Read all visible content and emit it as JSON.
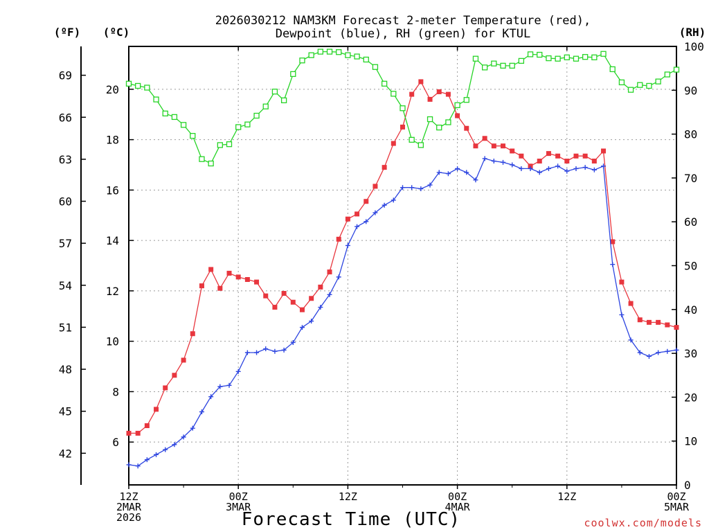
{
  "chart_data": {
    "type": "line",
    "title_lines": [
      "2026030212 NAM3KM Forecast 2-meter Temperature (red),",
      "Dewpoint (blue), RH (green) for KTUL"
    ],
    "xlabel": "Forecast Time (UTC)",
    "credit": "coolwx.com/models",
    "x_unit": "forecast hour",
    "xlim": [
      0,
      60
    ],
    "x_ticks": [
      {
        "x": 0,
        "lines": [
          "12Z",
          "2MAR",
          "2026"
        ]
      },
      {
        "x": 12,
        "lines": [
          "00Z",
          "3MAR"
        ]
      },
      {
        "x": 24,
        "lines": [
          "12Z"
        ]
      },
      {
        "x": 36,
        "lines": [
          "00Z",
          "4MAR"
        ]
      },
      {
        "x": 48,
        "lines": [
          "12Z"
        ]
      },
      {
        "x": 60,
        "lines": [
          "00Z",
          "5MAR"
        ]
      }
    ],
    "y_left_c": {
      "label": "(ºC)",
      "lim": [
        4.3,
        21.7
      ],
      "ticks": [
        "6",
        "8",
        "10",
        "12",
        "14",
        "16",
        "18",
        "20"
      ]
    },
    "y_left_f": {
      "label": "(ºF)",
      "ticks": [
        "42",
        "45",
        "48",
        "51",
        "54",
        "57",
        "60",
        "63",
        "66",
        "69"
      ]
    },
    "y_right_rh": {
      "label": "(RH)",
      "lim": [
        0,
        100
      ],
      "ticks": [
        "0",
        "10",
        "20",
        "30",
        "40",
        "50",
        "60",
        "70",
        "80",
        "90",
        "100"
      ]
    },
    "grid": true,
    "series": [
      {
        "name": "2-meter Temperature",
        "axis": "celsius",
        "color": "#e8363e",
        "marker": "filled-square",
        "x": [
          0,
          1,
          2,
          3,
          4,
          5,
          6,
          7,
          8,
          9,
          10,
          11,
          12,
          13,
          14,
          15,
          16,
          17,
          18,
          19,
          20,
          21,
          22,
          23,
          24,
          25,
          26,
          27,
          28,
          29,
          30,
          31,
          32,
          33,
          34,
          35,
          36,
          37,
          38,
          39,
          40,
          41,
          42,
          43,
          44,
          45,
          46,
          47,
          48,
          49,
          50,
          51,
          52,
          53,
          54,
          55,
          56,
          57,
          58,
          59,
          60
        ],
        "values": [
          6.35,
          6.35,
          6.65,
          7.3,
          8.15,
          8.65,
          9.25,
          10.3,
          12.2,
          12.85,
          12.1,
          12.7,
          12.55,
          12.45,
          12.35,
          11.8,
          11.35,
          11.9,
          11.55,
          11.25,
          11.7,
          12.15,
          12.75,
          14.05,
          14.85,
          15.05,
          15.55,
          16.15,
          16.9,
          17.85,
          18.5,
          19.8,
          20.3,
          19.6,
          19.9,
          19.8,
          18.95,
          18.45,
          17.75,
          18.05,
          17.75,
          17.75,
          17.55,
          17.35,
          16.95,
          17.15,
          17.45,
          17.35,
          17.15,
          17.35,
          17.35,
          17.15,
          17.55,
          13.95,
          12.35,
          11.5,
          10.85,
          10.75,
          10.75,
          10.65,
          10.55
        ]
      },
      {
        "name": "Dewpoint",
        "axis": "celsius",
        "color": "#2c44e0",
        "marker": "plus",
        "x": [
          0,
          1,
          2,
          3,
          4,
          5,
          6,
          7,
          8,
          9,
          10,
          11,
          12,
          13,
          14,
          15,
          16,
          17,
          18,
          19,
          20,
          21,
          22,
          23,
          24,
          25,
          26,
          27,
          28,
          29,
          30,
          31,
          32,
          33,
          34,
          35,
          36,
          37,
          38,
          39,
          40,
          41,
          42,
          43,
          44,
          45,
          46,
          47,
          48,
          49,
          50,
          51,
          52,
          53,
          54,
          55,
          56,
          57,
          58,
          59,
          60
        ],
        "values": [
          5.1,
          5.05,
          5.3,
          5.5,
          5.7,
          5.9,
          6.2,
          6.55,
          7.2,
          7.8,
          8.2,
          8.25,
          8.8,
          9.55,
          9.55,
          9.7,
          9.6,
          9.65,
          9.95,
          10.55,
          10.8,
          11.35,
          11.85,
          12.55,
          13.8,
          14.55,
          14.75,
          15.1,
          15.4,
          15.6,
          16.1,
          16.1,
          16.05,
          16.2,
          16.7,
          16.65,
          16.85,
          16.7,
          16.4,
          17.25,
          17.15,
          17.1,
          17.0,
          16.85,
          16.85,
          16.7,
          16.85,
          16.95,
          16.75,
          16.85,
          16.9,
          16.8,
          16.95,
          13.05,
          11.05,
          10.05,
          9.55,
          9.4,
          9.55,
          9.6,
          9.65
        ]
      },
      {
        "name": "RH",
        "axis": "rh",
        "color": "#26d426",
        "marker": "open-square",
        "x": [
          0,
          1,
          2,
          3,
          4,
          5,
          6,
          7,
          8,
          9,
          10,
          11,
          12,
          13,
          14,
          15,
          16,
          17,
          18,
          19,
          20,
          21,
          22,
          23,
          24,
          25,
          26,
          27,
          28,
          29,
          30,
          31,
          32,
          33,
          34,
          35,
          36,
          37,
          38,
          39,
          40,
          41,
          42,
          43,
          44,
          45,
          46,
          47,
          48,
          49,
          50,
          51,
          52,
          53,
          54,
          55,
          56,
          57,
          58,
          59,
          60
        ],
        "values": [
          91.5,
          91.0,
          90.6,
          87.9,
          84.7,
          83.9,
          82.1,
          79.6,
          74.3,
          73.3,
          77.5,
          77.7,
          81.6,
          82.2,
          84.2,
          86.3,
          89.7,
          87.7,
          93.7,
          96.8,
          98.0,
          98.8,
          98.8,
          98.7,
          98.0,
          97.7,
          97.0,
          95.3,
          91.5,
          89.2,
          85.9,
          78.7,
          77.5,
          83.4,
          81.5,
          82.7,
          86.6,
          87.8,
          97.2,
          95.2,
          96.1,
          95.6,
          95.6,
          96.7,
          98.2,
          98.1,
          97.3,
          97.2,
          97.5,
          97.2,
          97.6,
          97.5,
          98.3,
          94.8,
          91.8,
          90.1,
          91.2,
          91.0,
          92.0,
          93.6,
          94.7
        ]
      }
    ]
  }
}
